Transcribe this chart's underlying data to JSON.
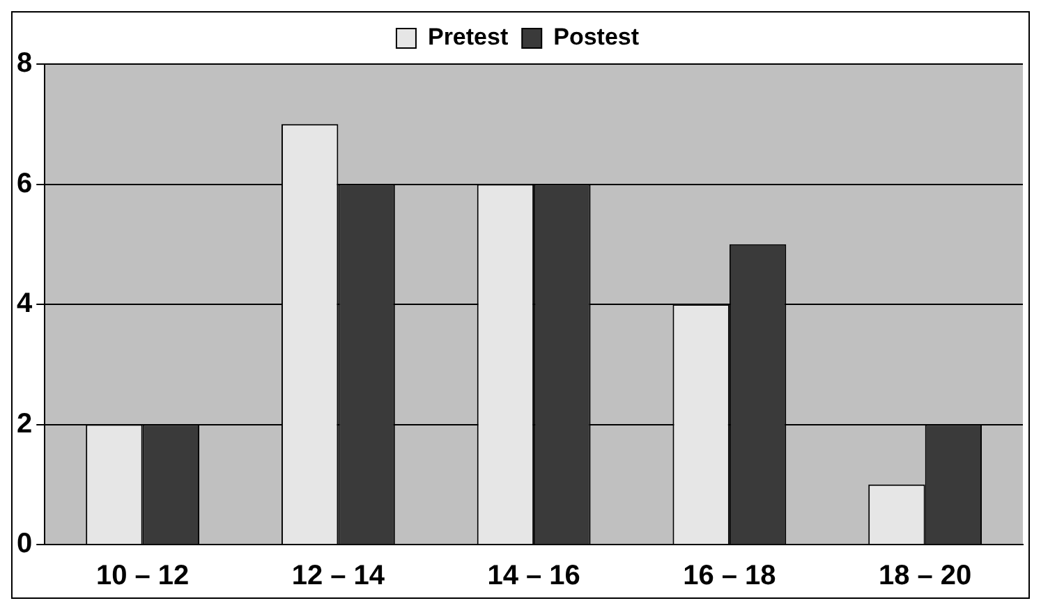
{
  "chart_data": {
    "type": "bar",
    "categories": [
      "10 – 12",
      "12 – 14",
      "14 – 16",
      "16 – 18",
      "18 – 20"
    ],
    "series": [
      {
        "name": "Pretest",
        "color": "#e6e6e6",
        "values": [
          2,
          7,
          6,
          4,
          1
        ]
      },
      {
        "name": "Postest",
        "color": "#3a3a3a",
        "values": [
          2,
          6,
          6,
          5,
          2
        ]
      }
    ],
    "ylim": [
      0,
      8
    ],
    "yticks": [
      0,
      2,
      4,
      6,
      8
    ],
    "grid": "y",
    "legend": "top"
  }
}
